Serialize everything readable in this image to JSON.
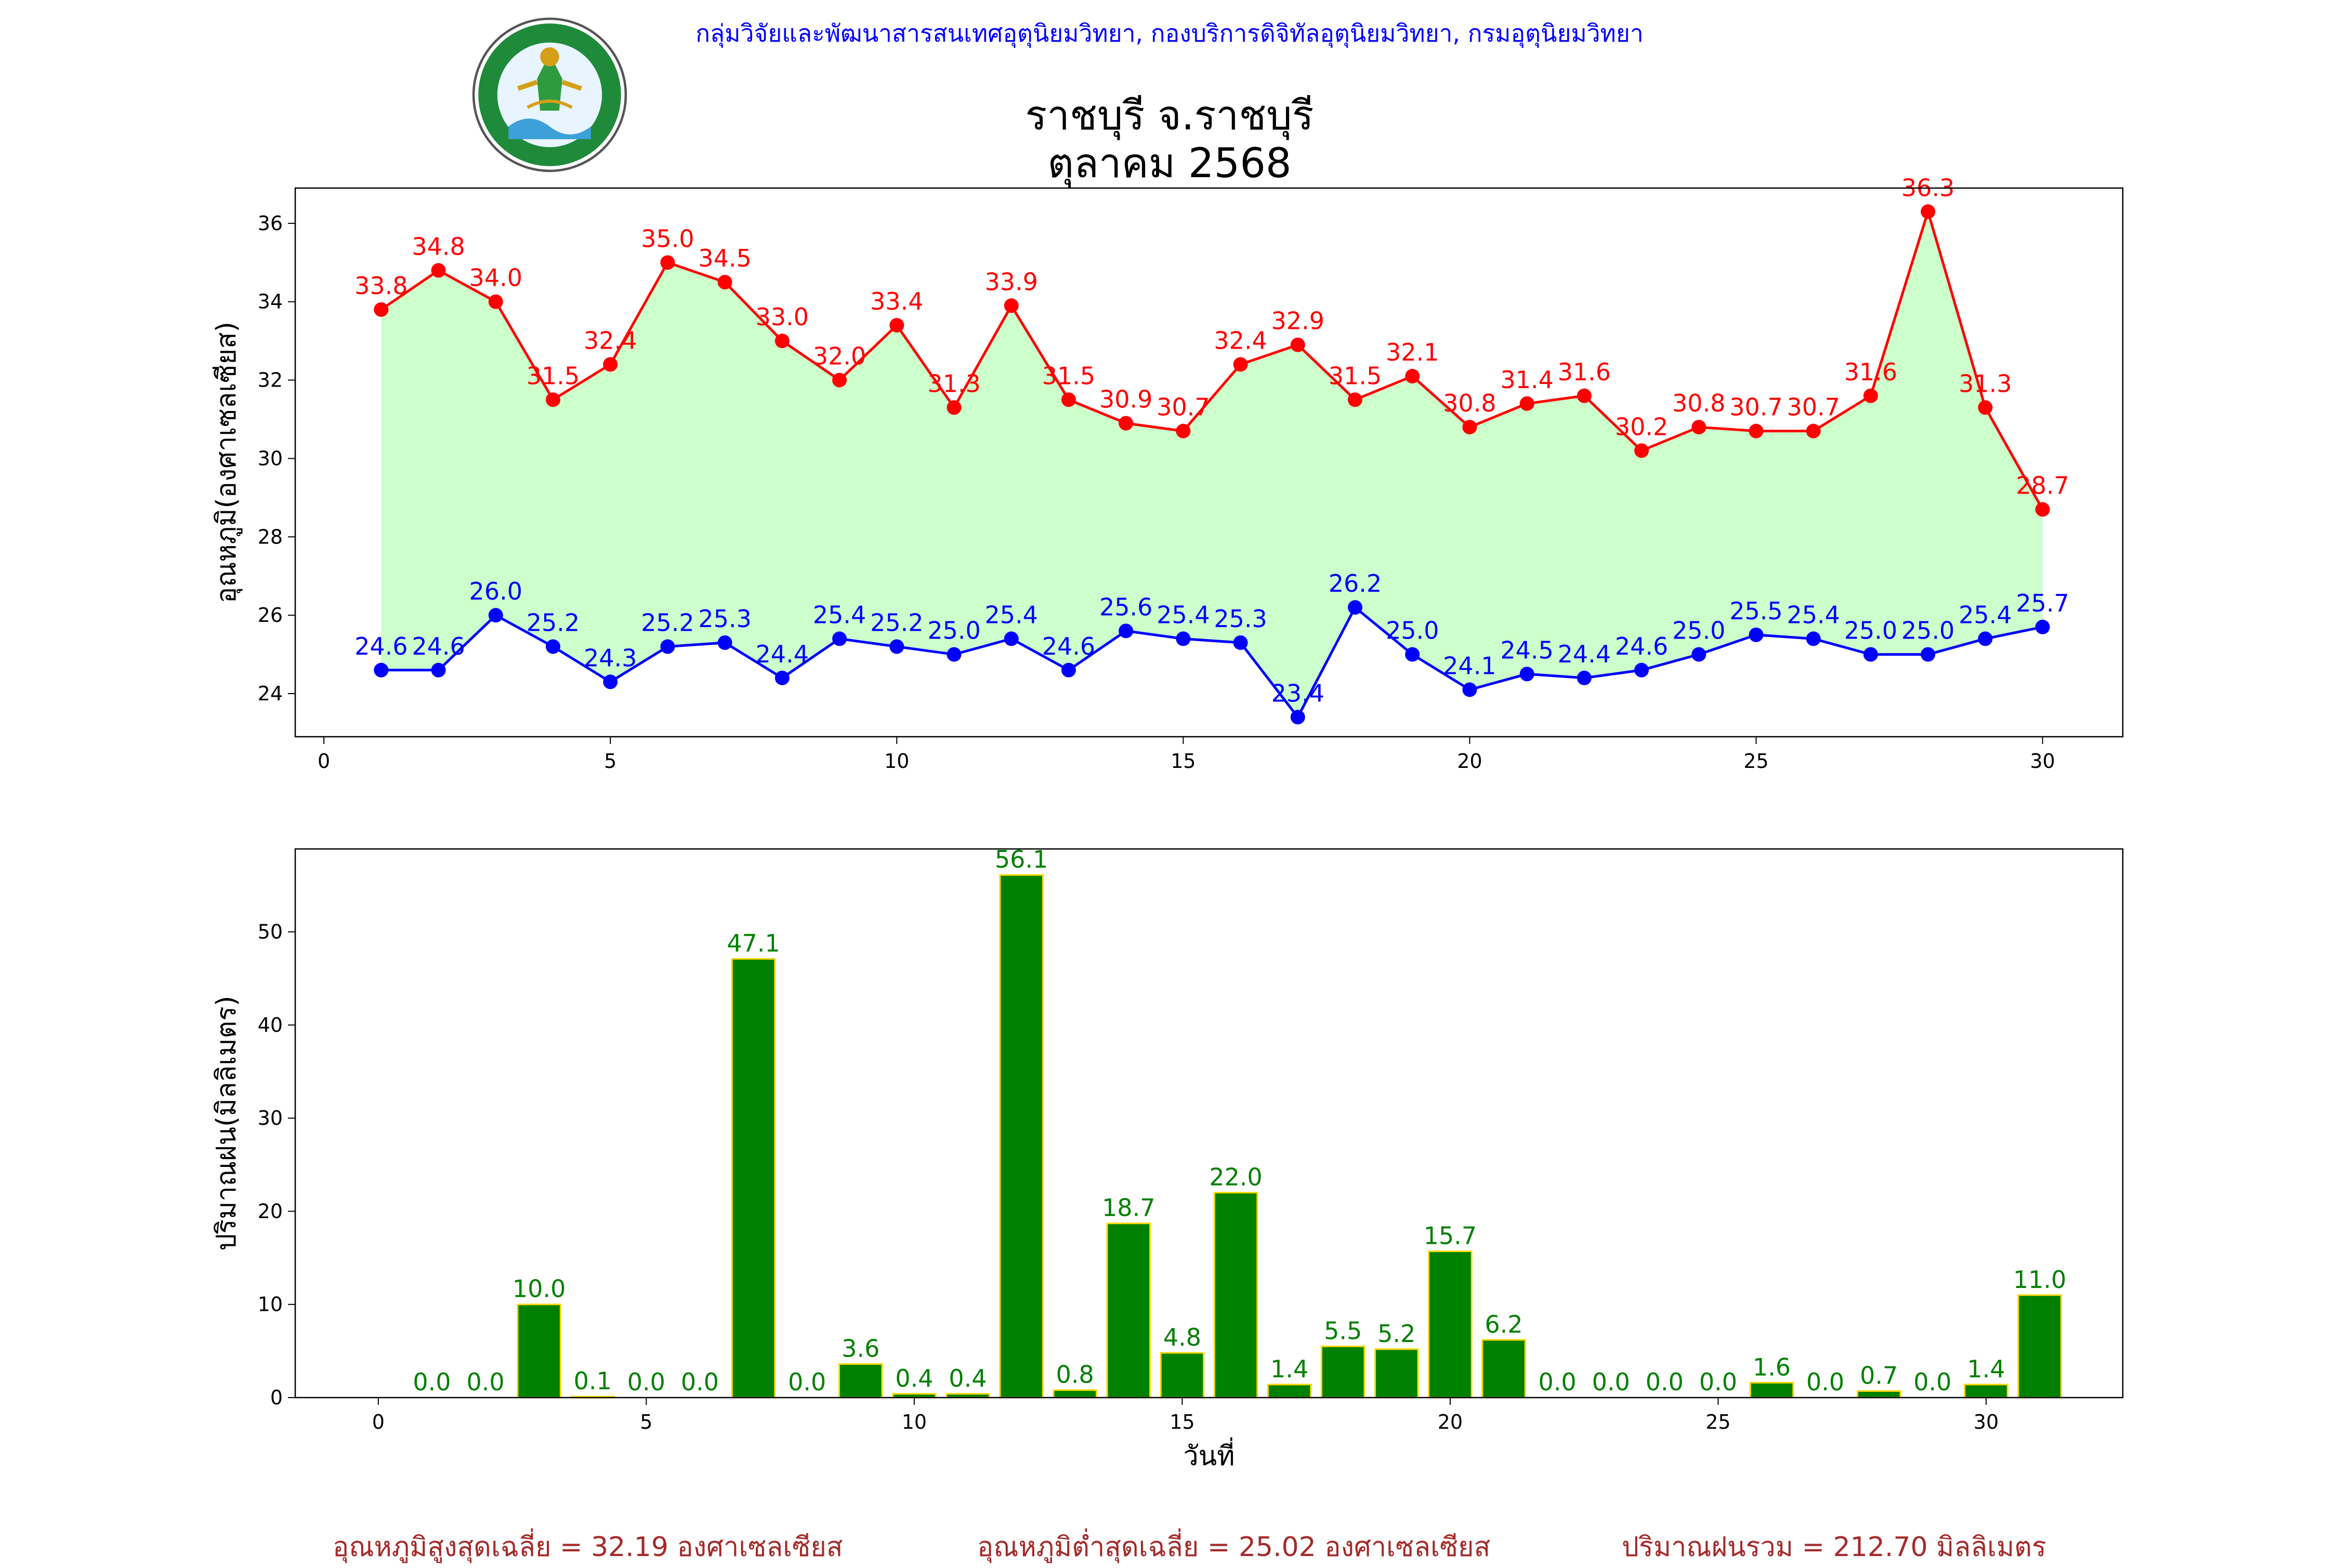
{
  "header": {
    "department": "กลุ่มวิจัยและพัฒนาสารสนเทศอุตุนิยมวิทยา, กองบริการดิจิทัลอุตุนิยมวิทยา, กรมอุตุนิยมวิทยา",
    "station": "ราชบุรี จ.ราชบุรี",
    "month": "ตุลาคม 2568",
    "logo_text": "กรมอุตุนิยมวิทยา",
    "logo_text_en": "METEOROLOGICAL DEPARTMENT"
  },
  "colors": {
    "max_line": "#ff0000",
    "min_line": "#0000ff",
    "fill": "#ccffcc",
    "bar": "#008000",
    "bar_edge": "#ffd700",
    "summary": "#a52a2a"
  },
  "chart_data": [
    {
      "type": "line",
      "ylabel": "อุณหภูมิ(องศาเซลเซียส)",
      "xlabel": "",
      "xlim": [
        -0.5,
        31.4
      ],
      "ylim": [
        22.9,
        36.9
      ],
      "xticks": [
        0,
        5,
        10,
        15,
        20,
        25,
        30
      ],
      "yticks": [
        24,
        26,
        28,
        30,
        32,
        34,
        36
      ],
      "fill_between": true,
      "x": [
        1,
        2,
        3,
        4,
        5,
        6,
        7,
        8,
        9,
        10,
        11,
        12,
        13,
        14,
        15,
        16,
        17,
        18,
        19,
        20,
        21,
        22,
        23,
        24,
        25,
        26,
        27,
        28,
        29,
        30
      ],
      "series": [
        {
          "key": "max",
          "values": [
            33.8,
            34.8,
            34.0,
            31.5,
            32.4,
            35.0,
            34.5,
            33.0,
            32.0,
            33.4,
            31.3,
            33.9,
            31.5,
            30.9,
            30.7,
            32.4,
            32.9,
            31.5,
            32.1,
            30.8,
            31.4,
            31.6,
            30.2,
            30.8,
            30.7,
            30.7,
            31.6,
            36.3,
            31.3,
            28.7
          ]
        },
        {
          "key": "min",
          "values": [
            24.6,
            24.6,
            26.0,
            25.2,
            24.3,
            25.2,
            25.3,
            24.4,
            25.4,
            25.2,
            25.0,
            25.4,
            24.6,
            25.6,
            25.4,
            25.3,
            23.4,
            26.2,
            25.0,
            24.1,
            24.5,
            24.4,
            24.6,
            25.0,
            25.5,
            25.4,
            25.0,
            25.0,
            25.4,
            25.7
          ]
        }
      ]
    },
    {
      "type": "bar",
      "ylabel": "ปริมาณฝน(มิลลิเมตร)",
      "xlabel": "วันที่",
      "xlim": [
        -1.55,
        32.55
      ],
      "ylim": [
        0,
        58.9
      ],
      "xticks": [
        0,
        5,
        10,
        15,
        20,
        25,
        30
      ],
      "yticks": [
        0,
        10,
        20,
        30,
        40,
        50
      ],
      "x": [
        1,
        2,
        3,
        4,
        5,
        6,
        7,
        8,
        9,
        10,
        11,
        12,
        13,
        14,
        15,
        16,
        17,
        18,
        19,
        20,
        21,
        22,
        23,
        24,
        25,
        26,
        27,
        28,
        29,
        30,
        31
      ],
      "values": [
        0.0,
        0.0,
        10.0,
        0.1,
        0.0,
        0.0,
        47.1,
        0.0,
        3.6,
        0.4,
        0.4,
        56.1,
        0.8,
        18.7,
        4.8,
        22.0,
        1.4,
        5.5,
        5.2,
        15.7,
        6.2,
        0.0,
        0.0,
        0.0,
        0.0,
        1.6,
        0.0,
        0.7,
        0.0,
        1.4,
        11.0
      ]
    }
  ],
  "summary": {
    "avg_max": "อุณหภูมิสูงสุดเฉลี่ย = 32.19 องศาเซลเซียส",
    "avg_min": "อุณหภูมิต่ำสุดเฉลี่ย = 25.02 องศาเซลเซียส",
    "total_rain": "ปริมาณฝนรวม = 212.70 มิลลิเมตร"
  }
}
